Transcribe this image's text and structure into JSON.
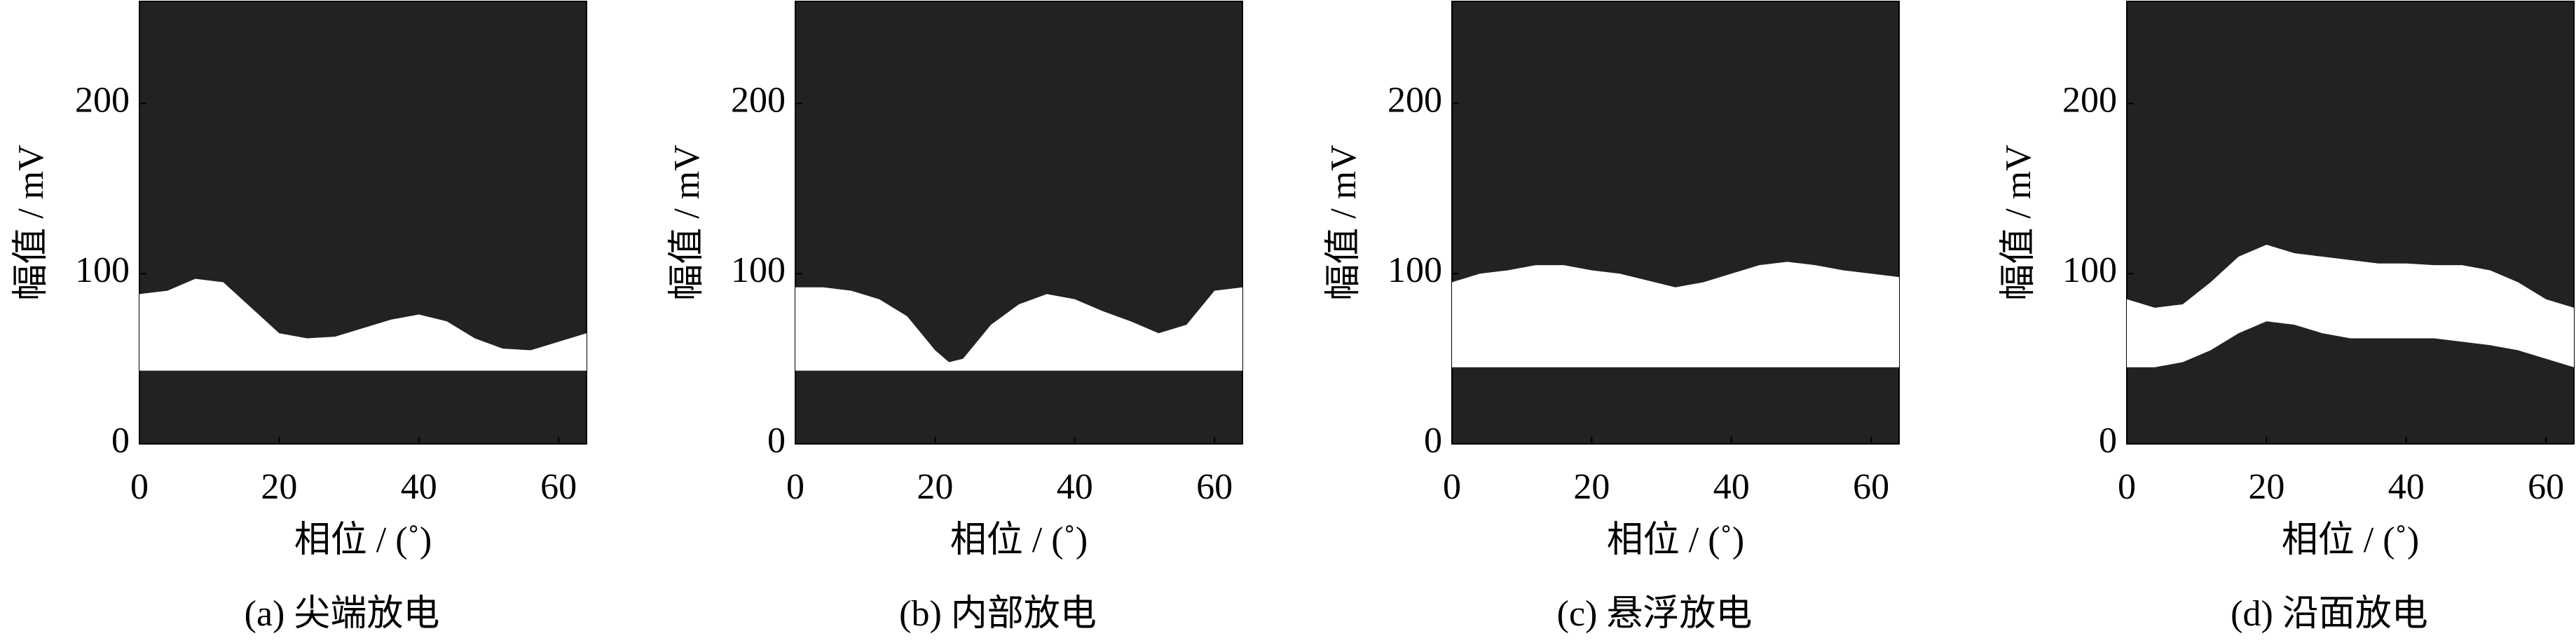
{
  "chart_data": [
    {
      "type": "band",
      "caption": "(a)  尖端放电",
      "xlabel": "相位 / (˚)",
      "ylabel": "幅值 / mV",
      "background": "#222222",
      "color": "#ffffff",
      "x": [
        0,
        4,
        8,
        12,
        16,
        20,
        24,
        28,
        32,
        36,
        40,
        44,
        48,
        52,
        56,
        60,
        64
      ],
      "upper": [
        88,
        90,
        97,
        95,
        80,
        65,
        62,
        63,
        68,
        73,
        76,
        72,
        62,
        56,
        55,
        60,
        65
      ],
      "lower": [
        43,
        43,
        43,
        43,
        43,
        43,
        43,
        43,
        43,
        43,
        43,
        43,
        43,
        43,
        43,
        43,
        43
      ],
      "xlim": [
        0,
        64
      ],
      "ylim": [
        0,
        260
      ],
      "xticks": [
        0,
        20,
        40,
        60
      ],
      "yticks": [
        0,
        100,
        200
      ]
    },
    {
      "type": "band",
      "caption": "(b)  内部放电",
      "xlabel": "相位 / (˚)",
      "ylabel": "幅值 / mV",
      "background": "#222222",
      "color": "#ffffff",
      "x": [
        0,
        4,
        8,
        12,
        16,
        20,
        22,
        24,
        28,
        32,
        36,
        40,
        44,
        48,
        52,
        56,
        60,
        64
      ],
      "upper": [
        92,
        92,
        90,
        85,
        75,
        55,
        48,
        50,
        70,
        82,
        88,
        85,
        78,
        72,
        65,
        70,
        90,
        92
      ],
      "lower": [
        43,
        43,
        43,
        43,
        43,
        43,
        43,
        43,
        43,
        43,
        43,
        43,
        43,
        43,
        43,
        43,
        43,
        43
      ],
      "xlim": [
        0,
        64
      ],
      "ylim": [
        0,
        260
      ],
      "xticks": [
        0,
        20,
        40,
        60
      ],
      "yticks": [
        0,
        100,
        200
      ]
    },
    {
      "type": "band",
      "caption": "(c)  悬浮放电",
      "xlabel": "相位 / (˚)",
      "ylabel": "幅值 / mV",
      "background": "#222222",
      "color": "#ffffff",
      "x": [
        0,
        4,
        8,
        12,
        16,
        20,
        24,
        28,
        32,
        36,
        40,
        44,
        48,
        52,
        56,
        60,
        64
      ],
      "upper": [
        95,
        100,
        102,
        105,
        105,
        102,
        100,
        96,
        92,
        95,
        100,
        105,
        107,
        105,
        102,
        100,
        98
      ],
      "lower": [
        45,
        45,
        45,
        45,
        45,
        45,
        45,
        45,
        45,
        45,
        45,
        45,
        45,
        45,
        45,
        45,
        45
      ],
      "xlim": [
        0,
        64
      ],
      "ylim": [
        0,
        260
      ],
      "xticks": [
        0,
        20,
        40,
        60
      ],
      "yticks": [
        0,
        100,
        200
      ]
    },
    {
      "type": "band",
      "caption": "(d)  沿面放电",
      "xlabel": "相位 / (˚)",
      "ylabel": "幅值 / mV",
      "background": "#222222",
      "color": "#ffffff",
      "x": [
        0,
        4,
        8,
        12,
        16,
        20,
        24,
        28,
        32,
        36,
        40,
        44,
        48,
        52,
        56,
        60,
        64
      ],
      "upper": [
        85,
        80,
        82,
        95,
        110,
        117,
        112,
        110,
        108,
        106,
        106,
        105,
        105,
        102,
        95,
        85,
        80
      ],
      "lower": [
        45,
        45,
        48,
        55,
        65,
        72,
        70,
        65,
        62,
        62,
        62,
        62,
        60,
        58,
        55,
        50,
        45
      ],
      "xlim": [
        0,
        64
      ],
      "ylim": [
        0,
        260
      ],
      "xticks": [
        0,
        20,
        40,
        60
      ],
      "yticks": [
        0,
        100,
        200
      ]
    }
  ]
}
